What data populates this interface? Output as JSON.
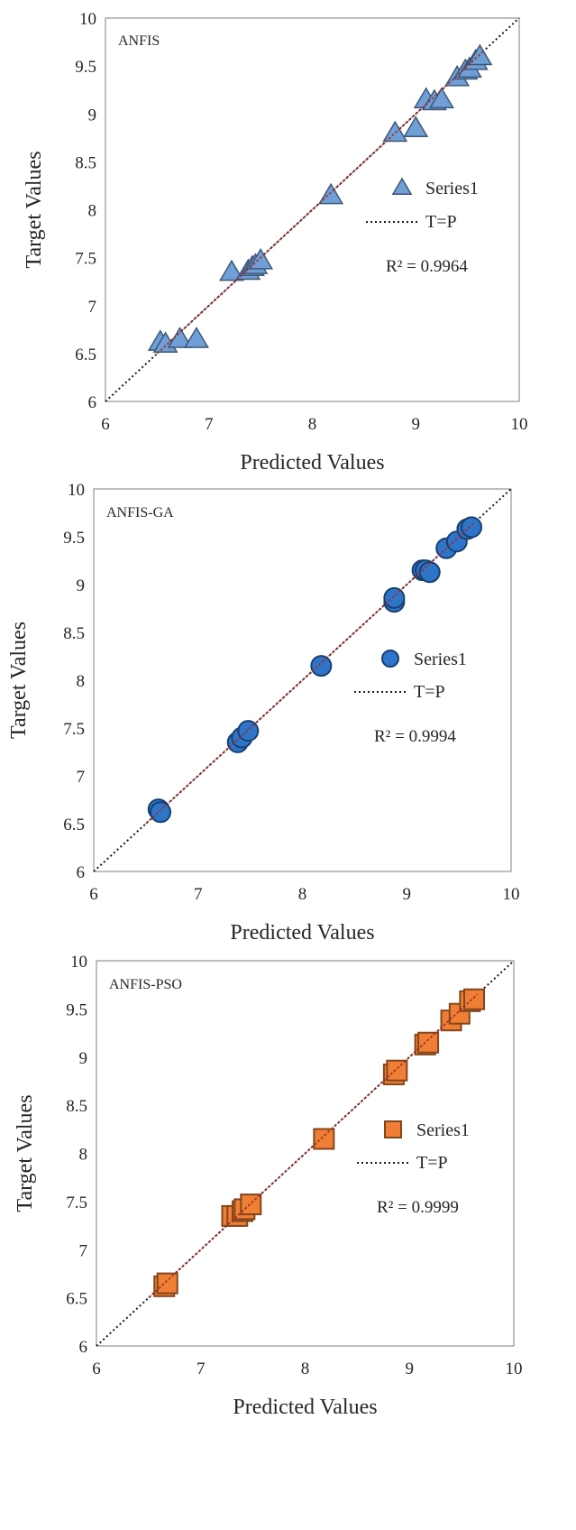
{
  "chart_data": [
    {
      "type": "scatter",
      "panel_label": "ANFIS",
      "xlabel": "Predicted Values",
      "ylabel": "Target Values",
      "xlim": [
        6,
        10
      ],
      "ylim": [
        6,
        10
      ],
      "xticks": [
        "6",
        "7",
        "8",
        "9",
        "10"
      ],
      "yticks": [
        "6",
        "6.5",
        "7",
        "7.5",
        "8",
        "8.5",
        "9",
        "9.5",
        "10"
      ],
      "grid": false,
      "legend": {
        "position": "right-middle",
        "series_label": "Series1",
        "line_label": "T=P"
      },
      "r2_label": "R² = 0.9964",
      "marker": "triangle",
      "color": "#6f9fd6",
      "series": [
        {
          "name": "Series1",
          "x": [
            6.53,
            6.58,
            6.72,
            6.88,
            7.22,
            7.38,
            7.42,
            7.45,
            7.5,
            8.18,
            8.8,
            9.0,
            9.1,
            9.18,
            9.25,
            9.4,
            9.48,
            9.52,
            9.58,
            9.62
          ],
          "y": [
            6.62,
            6.6,
            6.65,
            6.65,
            7.35,
            7.36,
            7.4,
            7.42,
            7.47,
            8.15,
            8.8,
            8.85,
            9.15,
            9.13,
            9.15,
            9.38,
            9.45,
            9.47,
            9.55,
            9.6
          ]
        },
        {
          "name": "T=P",
          "x": [
            6,
            10
          ],
          "y": [
            6,
            10
          ]
        }
      ]
    },
    {
      "type": "scatter",
      "panel_label": "ANFIS-GA",
      "xlabel": "Predicted Values",
      "ylabel": "Target Values",
      "xlim": [
        6,
        10
      ],
      "ylim": [
        6,
        10
      ],
      "xticks": [
        "6",
        "7",
        "8",
        "9",
        "10"
      ],
      "yticks": [
        "6",
        "6.5",
        "7",
        "7.5",
        "8",
        "8.5",
        "9",
        "9.5",
        "10"
      ],
      "grid": false,
      "legend": {
        "position": "right-middle",
        "series_label": "Series1",
        "line_label": "T=P"
      },
      "r2_label": "R² = 0.9994",
      "marker": "circle",
      "color": "#2e75c9",
      "series": [
        {
          "name": "Series1",
          "x": [
            6.62,
            6.64,
            7.38,
            7.42,
            7.48,
            8.18,
            8.88,
            8.88,
            9.15,
            9.18,
            9.22,
            9.38,
            9.48,
            9.58,
            9.62
          ],
          "y": [
            6.65,
            6.62,
            7.35,
            7.4,
            7.47,
            8.15,
            8.82,
            8.86,
            9.15,
            9.15,
            9.13,
            9.38,
            9.45,
            9.58,
            9.6
          ]
        },
        {
          "name": "T=P",
          "x": [
            6,
            10
          ],
          "y": [
            6,
            10
          ]
        }
      ]
    },
    {
      "type": "scatter",
      "panel_label": "ANFIS-PSO",
      "xlabel": "Predicted Values",
      "ylabel": "Target Values",
      "xlim": [
        6,
        10
      ],
      "ylim": [
        6,
        10
      ],
      "xticks": [
        "6",
        "7",
        "8",
        "9",
        "10"
      ],
      "yticks": [
        "6",
        "6.5",
        "7",
        "7.5",
        "8",
        "8.5",
        "9",
        "9.5",
        "10"
      ],
      "grid": false,
      "legend": {
        "position": "right-middle",
        "series_label": "Series1",
        "line_label": "T=P"
      },
      "r2_label": "R² = 0.9999",
      "marker": "square",
      "color": "#ef7f35",
      "series": [
        {
          "name": "Series1",
          "x": [
            6.65,
            6.68,
            7.3,
            7.35,
            7.4,
            7.42,
            7.48,
            8.18,
            8.85,
            8.88,
            9.15,
            9.18,
            9.4,
            9.48,
            9.58,
            9.62
          ],
          "y": [
            6.62,
            6.65,
            7.35,
            7.35,
            7.4,
            7.42,
            7.47,
            8.15,
            8.82,
            8.86,
            9.13,
            9.15,
            9.38,
            9.45,
            9.58,
            9.6
          ]
        },
        {
          "name": "T=P",
          "x": [
            6,
            10
          ],
          "y": [
            6,
            10
          ]
        }
      ]
    }
  ]
}
